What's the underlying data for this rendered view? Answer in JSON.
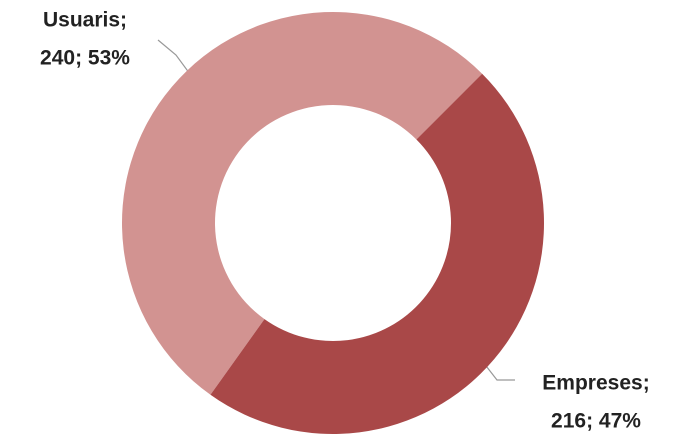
{
  "chart_data": {
    "type": "donut",
    "categories": [
      "Usuaris",
      "Empreses"
    ],
    "values": [
      240,
      216
    ],
    "value_labels": [
      [
        "Usuaris;",
        "240; 53%"
      ],
      [
        "Empreses;",
        "216; 47%"
      ]
    ],
    "colors": [
      "#d29391",
      "#a94848"
    ]
  }
}
